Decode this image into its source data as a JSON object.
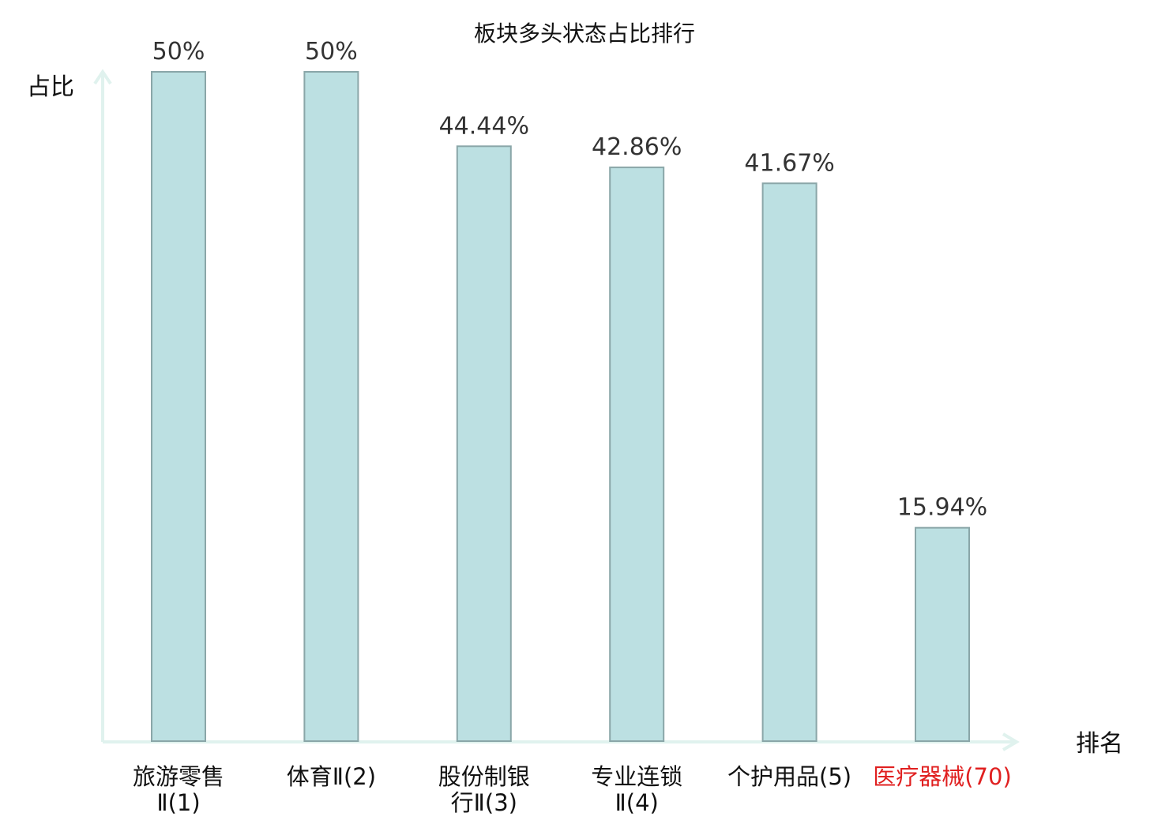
{
  "chart_data": {
    "type": "bar",
    "title": "板块多头状态占比排行",
    "ylabel": "占比",
    "xlabel": "排名",
    "ylim": [
      0,
      50
    ],
    "categories": [
      {
        "lines": [
          "旅游零售",
          "Ⅱ(1)"
        ],
        "highlight": false
      },
      {
        "lines": [
          "体育Ⅱ(2)"
        ],
        "highlight": false
      },
      {
        "lines": [
          "股份制银",
          "行Ⅱ(3)"
        ],
        "highlight": false
      },
      {
        "lines": [
          "专业连锁",
          "Ⅱ(4)"
        ],
        "highlight": false
      },
      {
        "lines": [
          "个护用品(5)"
        ],
        "highlight": false
      },
      {
        "lines": [
          "医疗器械(70)"
        ],
        "highlight": true
      }
    ],
    "values": [
      50,
      50,
      44.44,
      42.86,
      41.67,
      15.94
    ],
    "value_labels": [
      "50%",
      "50%",
      "44.44%",
      "42.86%",
      "41.67%",
      "15.94%"
    ],
    "colors": {
      "bar_fill": "#bce0e2",
      "bar_stroke": "#8aa6a8",
      "axis": "#e0f2ee",
      "text": "#333333",
      "highlight": "#e02020"
    }
  }
}
